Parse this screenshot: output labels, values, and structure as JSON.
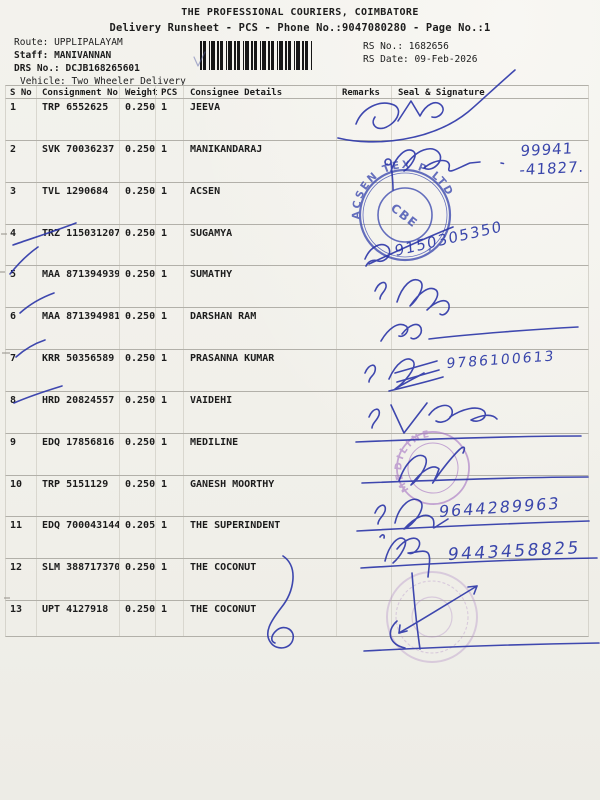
{
  "doc": {
    "title": "THE PROFESSIONAL COURIERS, COIMBATORE",
    "subtitle": "Delivery Runsheet - PCS - Phone No.:9047080280 - Page No.:1"
  },
  "meta": {
    "route_label": "Route:",
    "route_value": "UPPLIPALAYAM",
    "staff_label": "Staff:",
    "staff_value": "MANIVANNAN",
    "drs_label": "DRS No.:",
    "drs_value": "DCJB168265601",
    "vehicle_label": "Vehicle:",
    "vehicle_value": "Two Wheeler Delivery",
    "rs_no_label": "RS No.:",
    "rs_no_value": "1682656",
    "rs_date_label": "RS Date:",
    "rs_date_value": "09-Feb-2026",
    "barcode_icon": "barcode"
  },
  "table": {
    "headers": {
      "s_no": "S No",
      "consignment": "Consignment No",
      "weight": "Weight",
      "pcs": "PCS",
      "consignee": "Consignee Details",
      "remarks": "Remarks",
      "seal": "Seal & Signature"
    },
    "rows": [
      {
        "s_no": "1",
        "consignment": "TRP 6552625",
        "weight": "0.250",
        "pcs": "1",
        "consignee": "JEEVA",
        "remarks": ""
      },
      {
        "s_no": "2",
        "consignment": "SVK 70036237",
        "weight": "0.250",
        "pcs": "1",
        "consignee": "MANIKANDARAJ",
        "remarks": ""
      },
      {
        "s_no": "3",
        "consignment": "TVL 1290684",
        "weight": "0.250",
        "pcs": "1",
        "consignee": "ACSEN",
        "remarks": ""
      },
      {
        "s_no": "4",
        "consignment": "TRZ 115031207",
        "weight": "0.250",
        "pcs": "1",
        "consignee": "SUGAMYA",
        "remarks": ""
      },
      {
        "s_no": "5",
        "consignment": "MAA 871394939",
        "weight": "0.250",
        "pcs": "1",
        "consignee": "SUMATHY",
        "remarks": ""
      },
      {
        "s_no": "6",
        "consignment": "MAA 871394981",
        "weight": "0.250",
        "pcs": "1",
        "consignee": "DARSHAN RAM",
        "remarks": ""
      },
      {
        "s_no": "7",
        "consignment": "KRR 50356589",
        "weight": "0.250",
        "pcs": "1",
        "consignee": "PRASANNA KUMAR",
        "remarks": ""
      },
      {
        "s_no": "8",
        "consignment": "HRD 20824557",
        "weight": "0.250",
        "pcs": "1",
        "consignee": "VAIDEHI",
        "remarks": ""
      },
      {
        "s_no": "9",
        "consignment": "EDQ 17856816",
        "weight": "0.250",
        "pcs": "1",
        "consignee": "MEDILINE",
        "remarks": ""
      },
      {
        "s_no": "10",
        "consignment": "TRP 5151129",
        "weight": "0.250",
        "pcs": "1",
        "consignee": "GANESH MOORTHY",
        "remarks": ""
      },
      {
        "s_no": "11",
        "consignment": "EDQ 700043144",
        "weight": "0.205",
        "pcs": "1",
        "consignee": "THE SUPERINDENT",
        "remarks": ""
      },
      {
        "s_no": "12",
        "consignment": "SLM 388717370",
        "weight": "0.250",
        "pcs": "1",
        "consignee": "THE COCONUT",
        "remarks": ""
      },
      {
        "s_no": "13",
        "consignment": "UPT 4127918",
        "weight": "0.250",
        "pcs": "1",
        "consignee": "THE COCONUT",
        "remarks": ""
      }
    ]
  },
  "handwriting": {
    "phone_row2_line1": "99941",
    "phone_row2_line2": "-41827.",
    "phone_row4": "9150305350",
    "phone_row7": "9786100613",
    "phone_row10": "9644289963",
    "phone_row11": "9443458825"
  },
  "stamps": {
    "acsen_ring_text": "ACSEN TEX P LTD",
    "acsen_center_text": "CBE",
    "acsen_star": "★",
    "mediline_ring_text": "MEDILINE"
  },
  "colors": {
    "ink_blue": "#2b38a6",
    "stamp_blue": "#3f4cb0",
    "stamp_purple": "#a471c2",
    "paper": "#f2f1ec"
  }
}
